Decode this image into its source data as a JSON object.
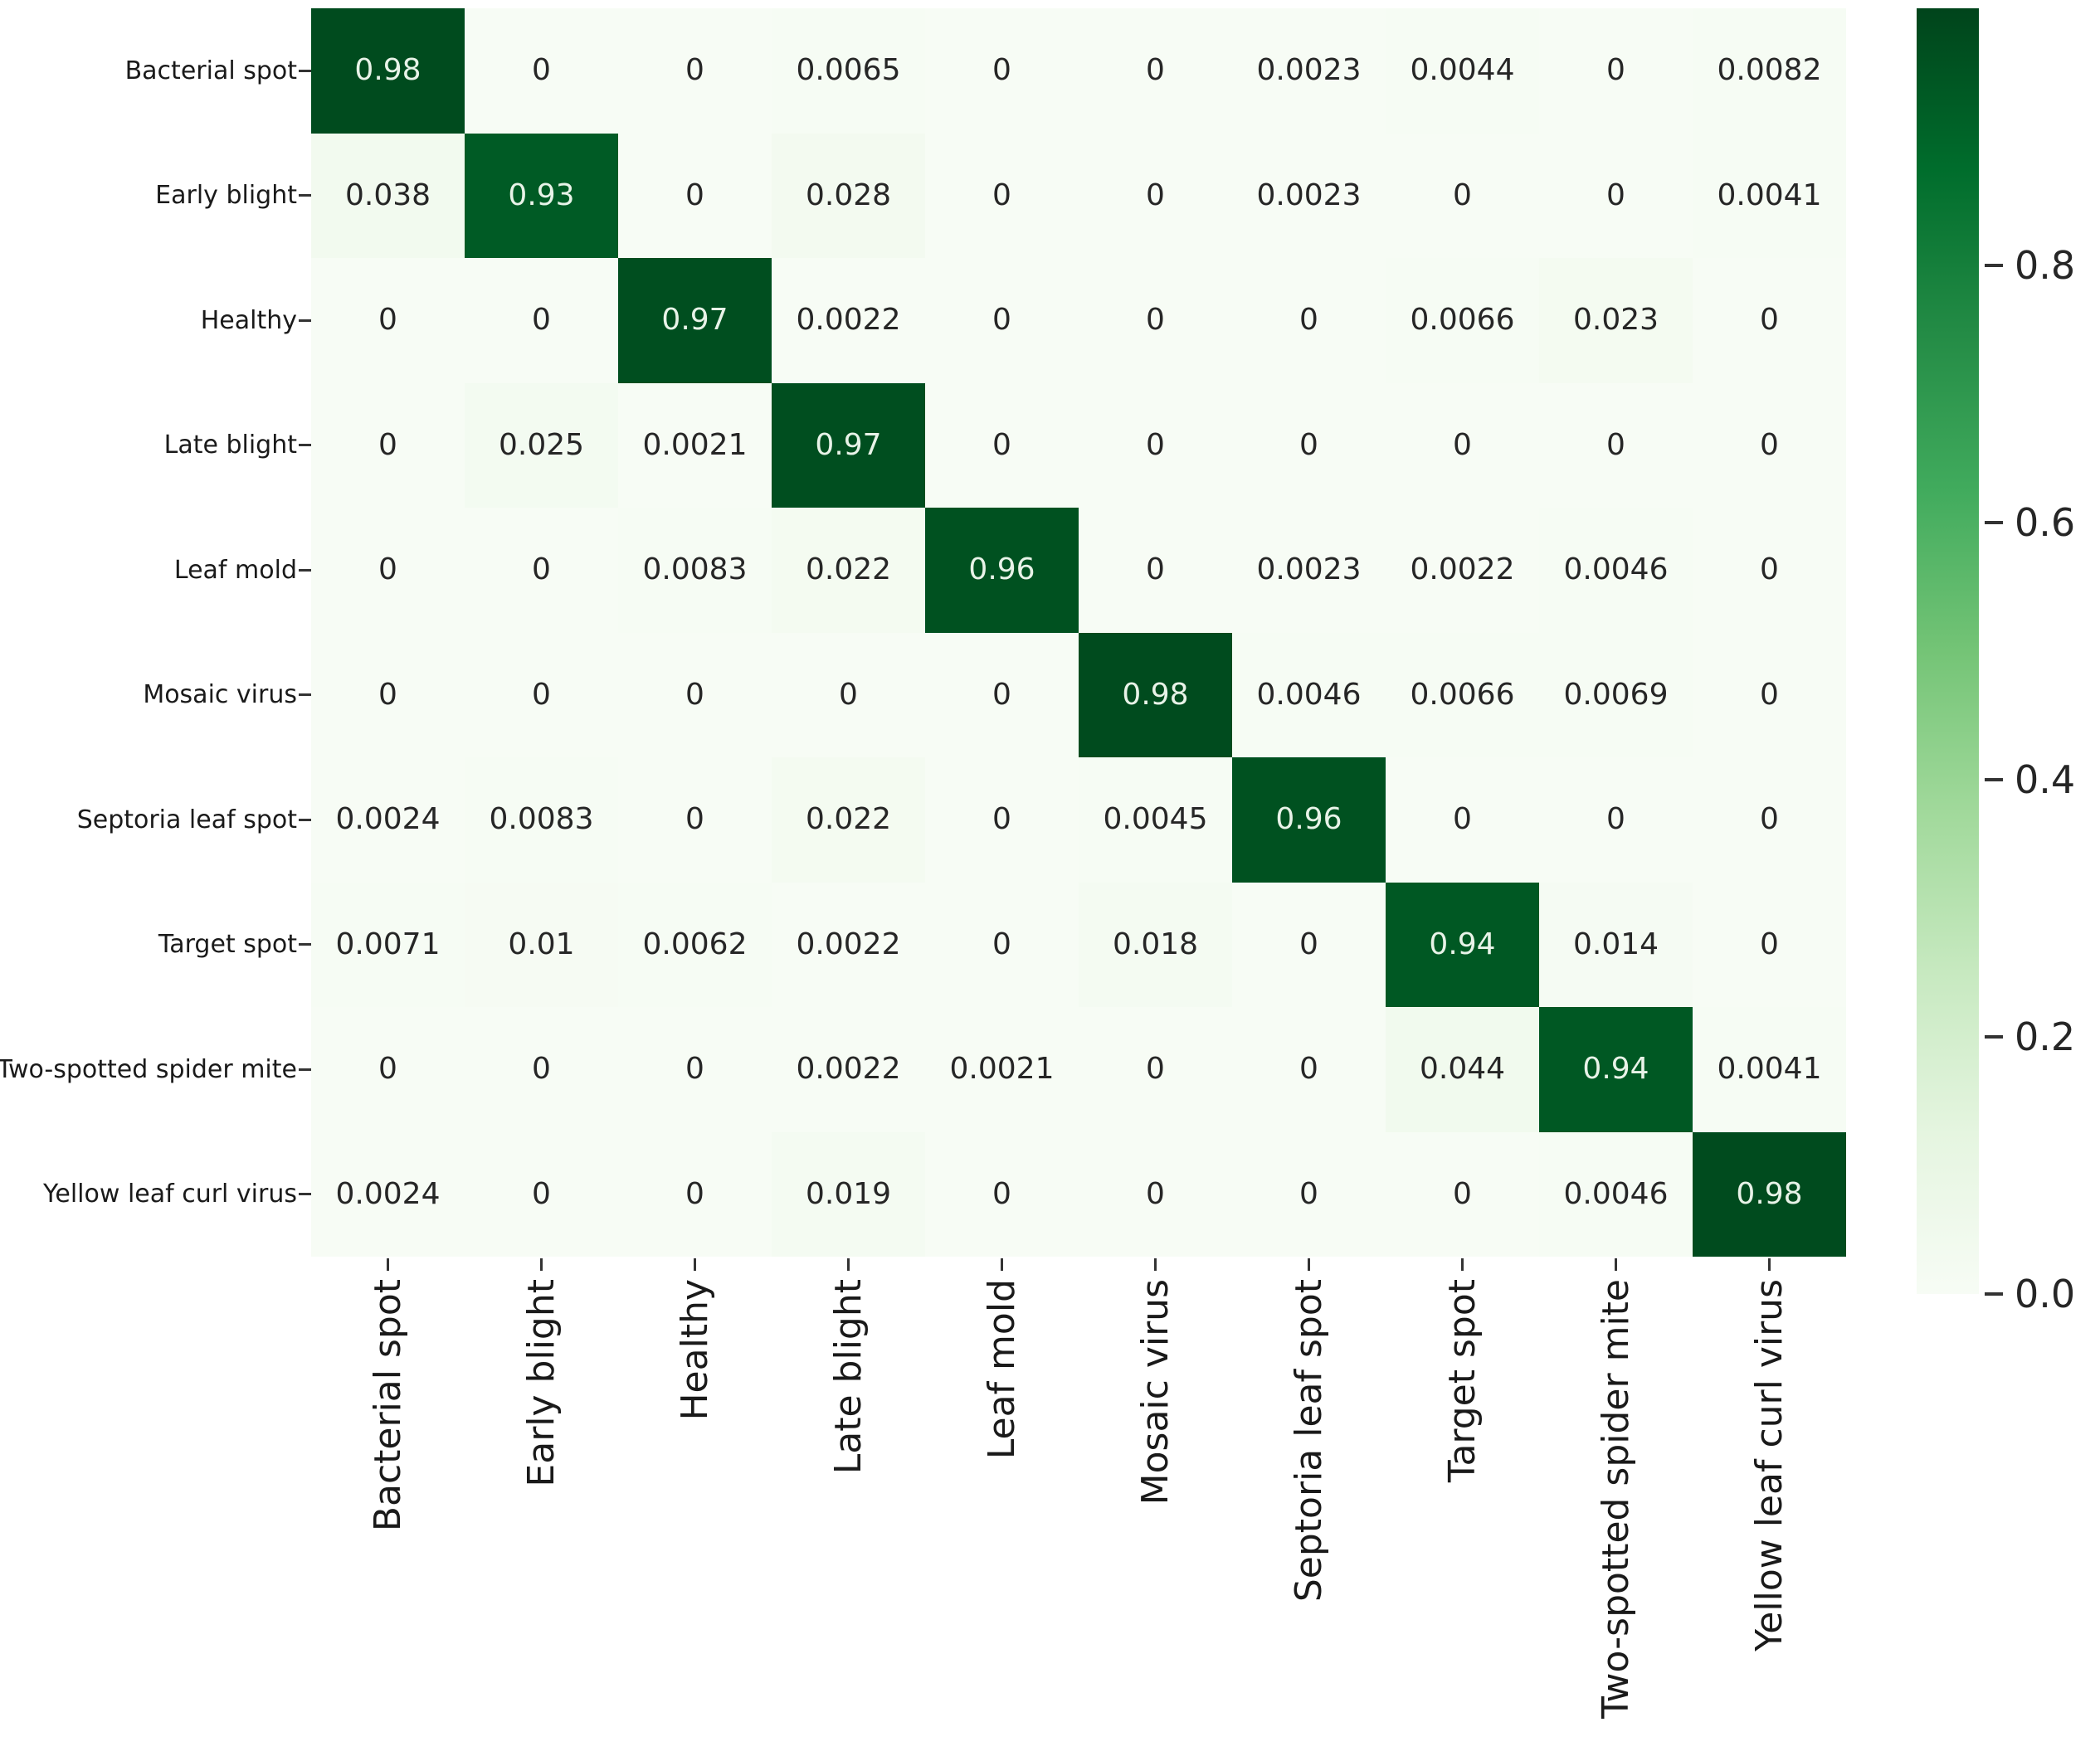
{
  "chart_data": {
    "type": "heatmap",
    "subtype": "confusion-matrix",
    "title": "",
    "xlabel": "",
    "ylabel": "",
    "categories": [
      "Bacterial spot",
      "Early blight",
      "Healthy",
      "Late blight",
      "Leaf mold",
      "Mosaic virus",
      "Septoria leaf spot",
      "Target spot",
      "Two-spotted spider mite",
      "Yellow leaf curl virus"
    ],
    "rows": [
      {
        "label": "Bacterial spot",
        "values": [
          "0.98",
          "0",
          "0",
          "0.0065",
          "0",
          "0",
          "0.0023",
          "0.0044",
          "0",
          "0.0082"
        ]
      },
      {
        "label": "Early blight",
        "values": [
          "0.038",
          "0.93",
          "0",
          "0.028",
          "0",
          "0",
          "0.0023",
          "0",
          "0",
          "0.0041"
        ]
      },
      {
        "label": "Healthy",
        "values": [
          "0",
          "0",
          "0.97",
          "0.0022",
          "0",
          "0",
          "0",
          "0.0066",
          "0.023",
          "0"
        ]
      },
      {
        "label": "Late blight",
        "values": [
          "0",
          "0.025",
          "0.0021",
          "0.97",
          "0",
          "0",
          "0",
          "0",
          "0",
          "0"
        ]
      },
      {
        "label": "Leaf mold",
        "values": [
          "0",
          "0",
          "0.0083",
          "0.022",
          "0.96",
          "0",
          "0.0023",
          "0.0022",
          "0.0046",
          "0"
        ]
      },
      {
        "label": "Mosaic virus",
        "values": [
          "0",
          "0",
          "0",
          "0",
          "0",
          "0.98",
          "0.0046",
          "0.0066",
          "0.0069",
          "0"
        ]
      },
      {
        "label": "Septoria leaf spot",
        "values": [
          "0.0024",
          "0.0083",
          "0",
          "0.022",
          "0",
          "0.0045",
          "0.96",
          "0",
          "0",
          "0"
        ]
      },
      {
        "label": "Target spot",
        "values": [
          "0.0071",
          "0.01",
          "0.0062",
          "0.0022",
          "0",
          "0.018",
          "0",
          "0.94",
          "0.014",
          "0"
        ]
      },
      {
        "label": "Two-spotted spider mite",
        "values": [
          "0",
          "0",
          "0",
          "0.0022",
          "0.0021",
          "0",
          "0",
          "0.044",
          "0.94",
          "0.0041"
        ]
      },
      {
        "label": "Yellow leaf curl virus",
        "values": [
          "0.0024",
          "0",
          "0",
          "0.019",
          "0",
          "0",
          "0",
          "0",
          "0.0046",
          "0.98"
        ]
      }
    ],
    "colorbar": {
      "position": "right",
      "tick_labels": [
        "0.8",
        "0.6",
        "0.4",
        "0.2",
        "0.0"
      ],
      "tick_values": [
        0.8,
        0.6,
        0.4,
        0.2,
        0.0
      ],
      "vmin": 0.0,
      "vmax": 1.0,
      "colormap": "Greens",
      "stops": [
        "#f7fcf5",
        "#e5f5e0",
        "#c7e9c0",
        "#a1d99b",
        "#74c476",
        "#41ab5d",
        "#238b45",
        "#006d2c",
        "#00441b"
      ]
    },
    "grid": false,
    "text_color_dark": "#262626",
    "text_color_light": "#e8f3e8"
  }
}
